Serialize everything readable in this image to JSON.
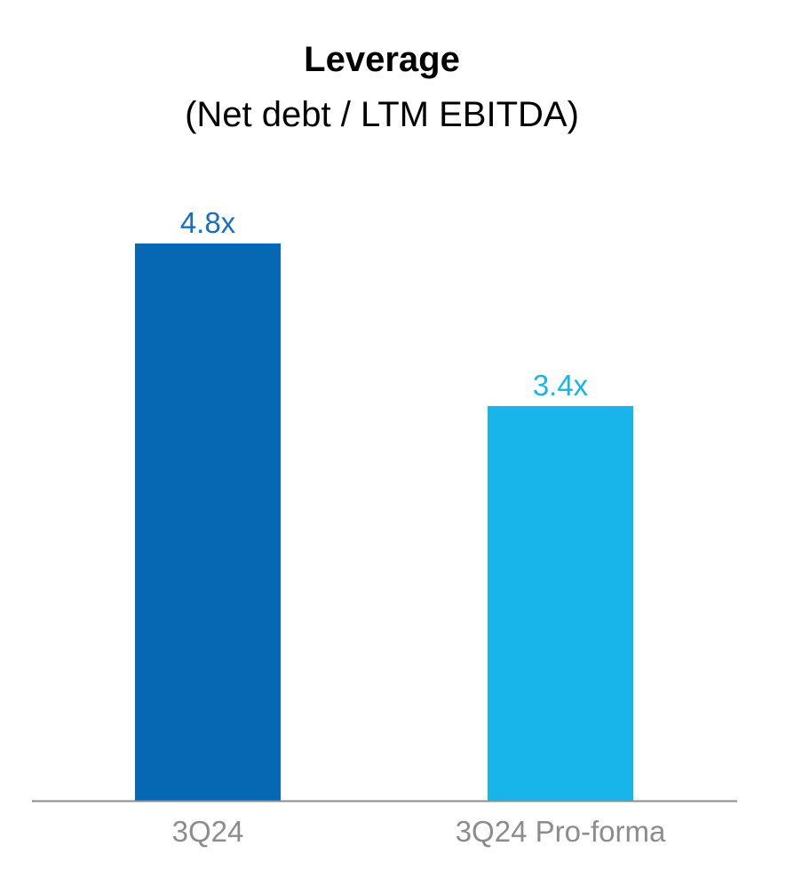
{
  "chart_data": {
    "type": "bar",
    "title": "Leverage",
    "subtitle": "(Net debt / LTM EBITDA)",
    "categories": [
      "3Q24",
      "3Q24 Pro-forma"
    ],
    "values": [
      4.8,
      3.4
    ],
    "value_labels": [
      "4.8x",
      "3.4x"
    ],
    "colors": [
      "#0667b3",
      "#17b5e9"
    ],
    "label_colors": [
      "#1a6fb8",
      "#17b5e9"
    ],
    "axis_color": "#8c8c8c",
    "category_label_color": "#8c8c8c",
    "xlabel": "",
    "ylabel": "",
    "ylim": [
      0,
      5.0
    ],
    "grid": false,
    "legend": "none"
  }
}
